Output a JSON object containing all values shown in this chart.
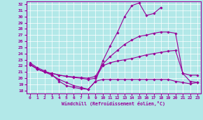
{
  "xlabel": "Windchill (Refroidissement éolien,°C)",
  "xlim": [
    -0.5,
    23.5
  ],
  "ylim": [
    17.5,
    32.5
  ],
  "yticks": [
    18,
    19,
    20,
    21,
    22,
    23,
    24,
    25,
    26,
    27,
    28,
    29,
    30,
    31,
    32
  ],
  "xticks": [
    0,
    1,
    2,
    3,
    4,
    5,
    6,
    7,
    8,
    9,
    10,
    11,
    12,
    13,
    14,
    15,
    16,
    17,
    18,
    19,
    20,
    21,
    22,
    23
  ],
  "bg_color": "#b2e8e8",
  "line_color": "#990099",
  "grid_color": "#ffffff",
  "lines": [
    {
      "x": [
        0,
        1,
        2,
        3,
        4,
        5,
        6,
        7,
        8,
        9,
        10,
        11,
        12,
        13,
        14,
        15,
        16,
        17,
        18
      ],
      "y": [
        22.5,
        21.7,
        21.2,
        20.6,
        19.5,
        18.8,
        18.5,
        18.3,
        18.2,
        19.5,
        22.8,
        25.2,
        27.4,
        30.0,
        31.8,
        32.2,
        30.2,
        30.5,
        31.5
      ]
    },
    {
      "x": [
        0,
        1,
        2,
        3,
        4,
        5,
        6,
        7,
        8,
        9,
        10,
        11,
        12,
        13,
        14,
        15,
        16,
        17,
        18,
        19,
        20,
        21,
        22,
        23
      ],
      "y": [
        22.3,
        21.5,
        21.0,
        20.8,
        20.5,
        20.3,
        20.2,
        20.1,
        20.0,
        20.3,
        22.3,
        23.5,
        24.5,
        25.5,
        26.2,
        26.8,
        27.0,
        27.3,
        27.5,
        27.5,
        27.3,
        20.8,
        20.5,
        20.5
      ]
    },
    {
      "x": [
        0,
        1,
        2,
        3,
        4,
        5,
        6,
        7,
        8,
        9,
        10,
        11,
        12,
        13,
        14,
        15,
        16,
        17,
        18,
        19,
        20,
        21,
        22,
        23
      ],
      "y": [
        22.2,
        21.5,
        21.0,
        20.8,
        20.5,
        20.3,
        20.1,
        20.0,
        19.8,
        20.0,
        22.0,
        22.5,
        22.8,
        23.0,
        23.2,
        23.5,
        23.8,
        24.0,
        24.2,
        24.4,
        24.5,
        20.8,
        19.5,
        19.3
      ]
    },
    {
      "x": [
        0,
        1,
        2,
        3,
        4,
        5,
        6,
        7,
        8,
        9,
        10,
        11,
        12,
        13,
        14,
        15,
        16,
        17,
        18,
        19,
        20,
        21,
        22,
        23
      ],
      "y": [
        22.2,
        21.5,
        21.0,
        20.5,
        19.8,
        19.3,
        18.8,
        18.5,
        18.2,
        19.5,
        19.8,
        19.8,
        19.8,
        19.8,
        19.8,
        19.8,
        19.8,
        19.8,
        19.8,
        19.8,
        19.5,
        19.3,
        19.1,
        19.3
      ]
    }
  ]
}
